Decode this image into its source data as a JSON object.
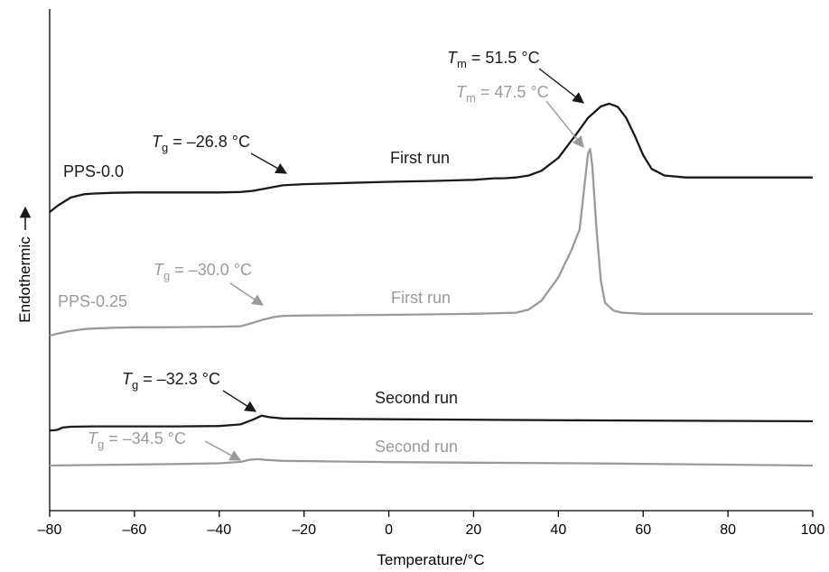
{
  "chart_data": {
    "type": "line",
    "xlabel": "Temperature/°C",
    "ylabel": "Endothermic",
    "xlim": [
      -80,
      100
    ],
    "x_ticks": [
      "–80",
      "–60",
      "–40",
      "–20",
      "0",
      "20",
      "40",
      "60",
      "80",
      "100"
    ],
    "y_axis_arrow": "up",
    "grid": false,
    "colors": {
      "black": "#1a1a1a",
      "gray": "#9a9a9a"
    },
    "series": [
      {
        "name": "PPS-0.0",
        "run_label": "First run",
        "color": "black",
        "x": [
          -80,
          -78,
          -75,
          -72,
          -70,
          -65,
          -60,
          -50,
          -40,
          -35,
          -32,
          -28,
          -25,
          -20,
          -10,
          0,
          10,
          20,
          25,
          27,
          30,
          33,
          36,
          40,
          44,
          47,
          50,
          52,
          54,
          56,
          58,
          60,
          62,
          65,
          70,
          80,
          100
        ],
        "y": [
          0.0,
          0.17,
          0.37,
          0.45,
          0.47,
          0.49,
          0.5,
          0.5,
          0.5,
          0.51,
          0.54,
          0.62,
          0.68,
          0.71,
          0.74,
          0.77,
          0.79,
          0.82,
          0.86,
          0.86,
          0.88,
          0.93,
          1.05,
          1.38,
          1.95,
          2.4,
          2.69,
          2.76,
          2.68,
          2.4,
          1.95,
          1.45,
          1.1,
          0.93,
          0.88,
          0.88,
          0.88
        ],
        "annotations": [
          {
            "symbol": "T",
            "subscript": "g",
            "text": " = –26.8 °C",
            "x": -26.8
          },
          {
            "symbol": "T",
            "subscript": "m",
            "text": " = 51.5 °C",
            "x": 51.5
          }
        ]
      },
      {
        "name": "PPS-0.25",
        "run_label": "First run",
        "color": "gray",
        "x": [
          -80,
          -78,
          -75,
          -72,
          -70,
          -65,
          -60,
          -50,
          -40,
          -35,
          -33,
          -30,
          -27,
          -25,
          -20,
          0,
          20,
          30,
          33,
          36,
          40,
          43,
          45,
          46,
          47,
          47.5,
          48,
          49,
          50,
          51,
          53,
          55,
          60,
          70,
          80,
          100
        ],
        "y": [
          0.0,
          0.1,
          0.22,
          0.3,
          0.33,
          0.37,
          0.39,
          0.4,
          0.42,
          0.44,
          0.55,
          0.73,
          0.88,
          0.93,
          0.95,
          0.98,
          1.03,
          1.08,
          1.23,
          1.65,
          2.75,
          4.0,
          5.0,
          6.8,
          8.6,
          8.8,
          8.0,
          5.0,
          2.6,
          1.55,
          1.18,
          1.08,
          1.03,
          1.03,
          1.03,
          1.03
        ],
        "annotations": [
          {
            "symbol": "T",
            "subscript": "g",
            "text": " = –30.0 °C",
            "x": -30.0
          },
          {
            "symbol": "T",
            "subscript": "m",
            "text": " = 47.5 °C",
            "x": 47.5
          }
        ]
      },
      {
        "name": "",
        "run_label": "Second run",
        "color": "black",
        "x": [
          -80,
          -79,
          -78,
          -77,
          -75,
          -70,
          -60,
          -50,
          -40,
          -35,
          -32,
          -30,
          -28,
          -25,
          0,
          50,
          100
        ],
        "y": [
          0.0,
          0.0,
          0.02,
          0.07,
          0.09,
          0.1,
          0.1,
          0.1,
          0.11,
          0.15,
          0.27,
          0.37,
          0.33,
          0.3,
          0.28,
          0.25,
          0.23
        ],
        "annotations": [
          {
            "symbol": "T",
            "subscript": "g",
            "text": " = –32.3 °C",
            "x": -32.3
          }
        ]
      },
      {
        "name": "",
        "run_label": "Second run",
        "color": "gray",
        "x": [
          -80,
          -70,
          -60,
          -50,
          -40,
          -35,
          -33,
          -31,
          -29,
          -25,
          0,
          50,
          100
        ],
        "y": [
          0.0,
          0.05,
          0.1,
          0.15,
          0.22,
          0.35,
          0.55,
          0.62,
          0.55,
          0.45,
          0.33,
          0.2,
          0.0
        ],
        "annotations": [
          {
            "symbol": "T",
            "subscript": "g",
            "text": " = –34.5 °C",
            "x": -34.5
          }
        ]
      }
    ]
  }
}
